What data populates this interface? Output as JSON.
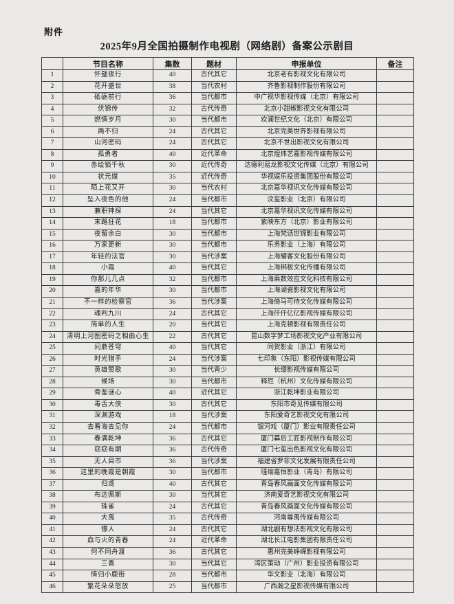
{
  "page": {
    "attachment_label": "附件",
    "title": "2025年9月全国拍摄制作电视剧（网络剧）备案公示剧目"
  },
  "table": {
    "headers": [
      "",
      "节目名称",
      "集数",
      "题材",
      "申报单位",
      "备注"
    ],
    "rows": [
      {
        "no": "1",
        "name": "怀璧夜行",
        "episodes": "40",
        "genre": "古代其它",
        "company": "北京老有影视文化有限公司",
        "note": ""
      },
      {
        "no": "2",
        "name": "花开盛世",
        "episodes": "38",
        "genre": "当代农村",
        "company": "齐鲁影视制作股份有限公司",
        "note": ""
      },
      {
        "no": "3",
        "name": "砥砺前行",
        "episodes": "36",
        "genre": "当代都市",
        "company": "中广视华影视传媒（北京）有限公司",
        "note": ""
      },
      {
        "no": "4",
        "name": "伏锦传",
        "episodes": "32",
        "genre": "古代传奇",
        "company": "北京小甜椒影视文化有限公司",
        "note": ""
      },
      {
        "no": "5",
        "name": "燃情岁月",
        "episodes": "30",
        "genre": "当代都市",
        "company": "欢澜世纪文化（北京）有限公司",
        "note": ""
      },
      {
        "no": "6",
        "name": "两不归",
        "episodes": "24",
        "genre": "古代其它",
        "company": "北京完美世界影视有限公司",
        "note": ""
      },
      {
        "no": "7",
        "name": "山河密码",
        "episodes": "24",
        "genre": "古代其它",
        "company": "北京不世出影视文化有限公司",
        "note": ""
      },
      {
        "no": "8",
        "name": "孤勇者",
        "episodes": "40",
        "genre": "近代革命",
        "company": "北京煌炜艺嘉影视传媒有限公司",
        "note": ""
      },
      {
        "no": "9",
        "name": "赤绘锁千秋",
        "episodes": "30",
        "genre": "近代传奇",
        "company": "达德利易龙影视文化传媒（北京）有限公司",
        "note": ""
      },
      {
        "no": "10",
        "name": "状元媒",
        "episodes": "35",
        "genre": "近代传奇",
        "company": "华视娱乐投资集团股份有限公司",
        "note": ""
      },
      {
        "no": "11",
        "name": "陌上花又开",
        "episodes": "30",
        "genre": "当代农村",
        "company": "北京嘉华视讯文化传媒有限公司",
        "note": ""
      },
      {
        "no": "12",
        "name": "坠入夜色的他",
        "episodes": "24",
        "genre": "当代都市",
        "company": "汶玺影业（北京）有限公司",
        "note": ""
      },
      {
        "no": "13",
        "name": "兼职神探",
        "episodes": "24",
        "genre": "当代其它",
        "company": "北京嘉华视讯文化传媒有限公司",
        "note": ""
      },
      {
        "no": "14",
        "name": "末路狂花",
        "episodes": "18",
        "genre": "当代都市",
        "company": "紫映东方（北京）影业有限公司",
        "note": ""
      },
      {
        "no": "15",
        "name": "夜留余白",
        "episodes": "30",
        "genre": "当代都市",
        "company": "上海梵话世锦影业有限公司",
        "note": ""
      },
      {
        "no": "16",
        "name": "万家更新",
        "episodes": "30",
        "genre": "当代都市",
        "company": "乐务影业（上海）有限公司",
        "note": ""
      },
      {
        "no": "17",
        "name": "年轻的法官",
        "episodes": "30",
        "genre": "当代涉案",
        "company": "上海耀客文化股份有限公司",
        "note": ""
      },
      {
        "no": "18",
        "name": "小霞",
        "episodes": "40",
        "genre": "当代其它",
        "company": "上海梆板文化传播有限公司",
        "note": ""
      },
      {
        "no": "19",
        "name": "你那儿几点",
        "episodes": "32",
        "genre": "当代都市",
        "company": "上海乘数效应文化科技有限公司",
        "note": ""
      },
      {
        "no": "20",
        "name": "嘉的年华",
        "episodes": "30",
        "genre": "当代都市",
        "company": "上海湖瓷影视文化有限公司",
        "note": ""
      },
      {
        "no": "21",
        "name": "不一样的检察官",
        "episodes": "36",
        "genre": "当代涉案",
        "company": "上海倚马可待文化传媒有限公司",
        "note": ""
      },
      {
        "no": "22",
        "name": "魂判九川",
        "episodes": "24",
        "genre": "古代其它",
        "company": "上海仟仟亿亿影视传媒有限公司",
        "note": ""
      },
      {
        "no": "23",
        "name": "简单的人生",
        "episodes": "20",
        "genre": "当代其它",
        "company": "上海克顿影视有限责任公司",
        "note": ""
      },
      {
        "no": "24",
        "name": "清明上河图密码之相由心生",
        "episodes": "22",
        "genre": "古代其它",
        "company": "昆山数字梦工场影视文化产业有限公司",
        "note": ""
      },
      {
        "no": "25",
        "name": "问鼎苍穹",
        "episodes": "40",
        "genre": "当代其它",
        "company": "同贺影业（浙江）有限公司",
        "note": ""
      },
      {
        "no": "26",
        "name": "时光猎手",
        "episodes": "24",
        "genre": "当代涉案",
        "company": "七印象（东阳）影视传媒有限公司",
        "note": ""
      },
      {
        "no": "27",
        "name": "英雄赞歌",
        "episodes": "30",
        "genre": "当代青少",
        "company": "长缨影视传媒有限公司",
        "note": ""
      },
      {
        "no": "28",
        "name": "候场",
        "episodes": "30",
        "genre": "当代都市",
        "company": "释厄（杭州）文化传媒有限公司",
        "note": ""
      },
      {
        "no": "29",
        "name": "骨鉴谜心",
        "episodes": "40",
        "genre": "近代其它",
        "company": "浙江乾坤影业有限公司",
        "note": ""
      },
      {
        "no": "30",
        "name": "毒舌大侠",
        "episodes": "30",
        "genre": "古代其它",
        "company": "东阳市奇见传媒有限公司",
        "note": ""
      },
      {
        "no": "31",
        "name": "深渊游戏",
        "episodes": "18",
        "genre": "当代涉案",
        "company": "东阳爱奇艺影视文化有限公司",
        "note": ""
      },
      {
        "no": "32",
        "name": "去看海去见你",
        "episodes": "24",
        "genre": "当代都市",
        "company": "银河戏（厦门）影业有限责任公司",
        "note": ""
      },
      {
        "no": "33",
        "name": "春满乾坤",
        "episodes": "36",
        "genre": "古代其它",
        "company": "厦门幕后工匠影视制作有限公司",
        "note": ""
      },
      {
        "no": "34",
        "name": "窈窈有期",
        "episodes": "36",
        "genre": "古代传奇",
        "company": "厦门七玺出色影视文化有限公司",
        "note": ""
      },
      {
        "no": "35",
        "name": "无人目市",
        "episodes": "36",
        "genre": "当代涉案",
        "company": "福建省罗非文化发展有限责任公司",
        "note": ""
      },
      {
        "no": "36",
        "name": "这里的晚霞是朝霞",
        "episodes": "30",
        "genre": "当代都市",
        "company": "瑾瑜嘉恒影业（青岛）有限公司",
        "note": ""
      },
      {
        "no": "37",
        "name": "归鸢",
        "episodes": "40",
        "genre": "古代其它",
        "company": "青岛春风画面文化传媒有限公司",
        "note": ""
      },
      {
        "no": "38",
        "name": "布达佩斯",
        "episodes": "30",
        "genre": "当代其它",
        "company": "济南爱奇艺影视文化有限公司",
        "note": ""
      },
      {
        "no": "39",
        "name": "珠雀",
        "episodes": "24",
        "genre": "古代其它",
        "company": "青岛春风画面文化传媒有限公司",
        "note": ""
      },
      {
        "no": "40",
        "name": "大禹",
        "episodes": "35",
        "genre": "古代传奇",
        "company": "河南尊禹传媒有限公司",
        "note": ""
      },
      {
        "no": "41",
        "name": "镖人",
        "episodes": "24",
        "genre": "古代其它",
        "company": "湖北剧有想法影视文化有限公司",
        "note": ""
      },
      {
        "no": "42",
        "name": "血与火的青春",
        "episodes": "24",
        "genre": "近代革命",
        "company": "湖北长江电影集团有限责任公司",
        "note": ""
      },
      {
        "no": "43",
        "name": "何不同舟渡",
        "episodes": "36",
        "genre": "古代其它",
        "company": "惠州完美峥嵘影视有限公司",
        "note": ""
      },
      {
        "no": "44",
        "name": "三香",
        "episodes": "30",
        "genre": "当代其它",
        "company": "湾区策动（广州）影业投资有限公司",
        "note": ""
      },
      {
        "no": "45",
        "name": "情归小鹿街",
        "episodes": "28",
        "genre": "当代都市",
        "company": "华文影业（北海）有限公司",
        "note": ""
      },
      {
        "no": "46",
        "name": "繁花朵朵怒放",
        "episodes": "25",
        "genre": "当代都市",
        "company": "广西瀚之星影视传媒有限公司",
        "note": ""
      }
    ]
  }
}
